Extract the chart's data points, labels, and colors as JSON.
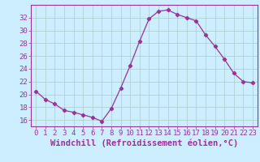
{
  "x": [
    0,
    1,
    2,
    3,
    4,
    5,
    6,
    7,
    8,
    9,
    10,
    11,
    12,
    13,
    14,
    15,
    16,
    17,
    18,
    19,
    20,
    21,
    22,
    23
  ],
  "y": [
    20.5,
    19.2,
    18.5,
    17.5,
    17.2,
    16.8,
    16.4,
    15.8,
    17.8,
    21.0,
    24.5,
    28.3,
    31.8,
    33.0,
    33.2,
    32.5,
    32.0,
    31.5,
    29.3,
    27.5,
    25.5,
    23.3,
    22.0,
    21.8
  ],
  "line_color": "#993399",
  "marker": "D",
  "marker_size": 2.2,
  "bg_color": "#cceeff",
  "grid_color": "#aacccc",
  "xlabel": "Windchill (Refroidissement éolien,°C)",
  "ylabel": "",
  "xlim": [
    -0.5,
    23.5
  ],
  "ylim": [
    15.0,
    34.0
  ],
  "yticks": [
    16,
    18,
    20,
    22,
    24,
    26,
    28,
    30,
    32
  ],
  "xticks": [
    0,
    1,
    2,
    3,
    4,
    5,
    6,
    7,
    8,
    9,
    10,
    11,
    12,
    13,
    14,
    15,
    16,
    17,
    18,
    19,
    20,
    21,
    22,
    23
  ],
  "font_color": "#993399",
  "tick_fontsize": 6.5,
  "xlabel_fontsize": 7.5
}
